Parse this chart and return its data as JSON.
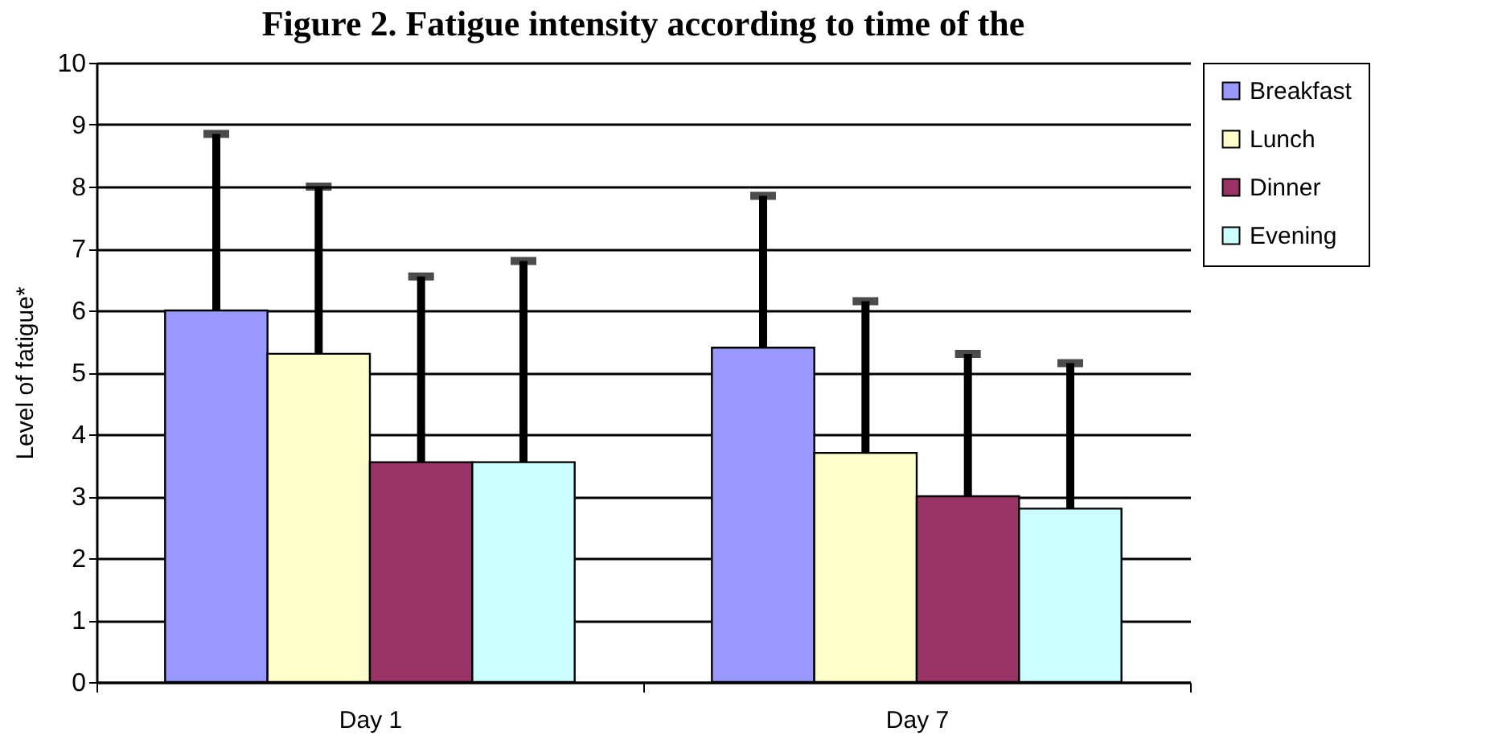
{
  "chart_data": {
    "type": "bar",
    "title": "Figure 2.  Fatigue intensity according to time of the",
    "ylabel": "Level of fatigue*",
    "categories": [
      "Day 1",
      "Day 7"
    ],
    "series": [
      {
        "name": "Breakfast",
        "color": "#9999ff",
        "values": [
          6.0,
          5.4
        ],
        "errors": [
          [
            6.0,
            8.85
          ],
          [
            5.4,
            7.85
          ]
        ]
      },
      {
        "name": "Lunch",
        "color": "#ffffcc",
        "values": [
          5.3,
          3.7
        ],
        "errors": [
          [
            5.3,
            8.0
          ],
          [
            3.7,
            6.15
          ]
        ]
      },
      {
        "name": "Dinner",
        "color": "#993366",
        "values": [
          3.55,
          3.0
        ],
        "errors": [
          [
            3.55,
            6.55
          ],
          [
            3.0,
            5.3
          ]
        ]
      },
      {
        "name": "Evening",
        "color": "#ccffff",
        "values": [
          3.55,
          2.8
        ],
        "errors": [
          [
            3.55,
            6.8
          ],
          [
            2.8,
            5.15
          ]
        ]
      }
    ],
    "ylim": [
      0,
      10
    ],
    "yticks": [
      0,
      1,
      2,
      3,
      4,
      5,
      6,
      7,
      8,
      9,
      10
    ],
    "grid": "y",
    "legend": "right"
  }
}
